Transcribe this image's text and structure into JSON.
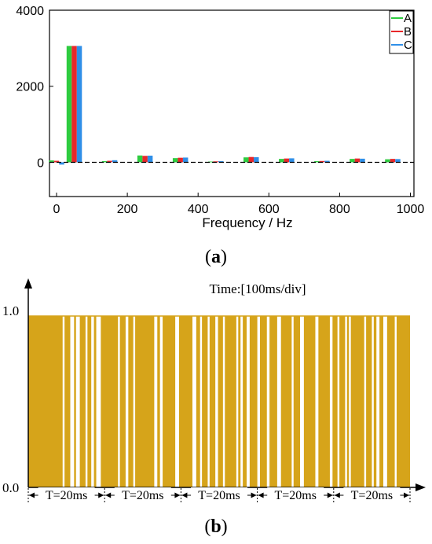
{
  "chart_data": [
    {
      "type": "bar",
      "panel_label": "a",
      "xlabel": "Frequency / Hz",
      "ylabel": "",
      "xlim": [
        -20,
        1010
      ],
      "ylim": [
        -900,
        4000
      ],
      "xticks": [
        0,
        200,
        400,
        600,
        800,
        1000
      ],
      "yticks": [
        0,
        2000,
        4000
      ],
      "grid": false,
      "legend_position": "top-right",
      "colors": {
        "A": "#2ecc40",
        "B": "#e8272a",
        "C": "#2f8fe8"
      },
      "categories": [
        0,
        50,
        150,
        250,
        350,
        450,
        550,
        650,
        750,
        850,
        950
      ],
      "series": [
        {
          "name": "A",
          "values": [
            50,
            3060,
            30,
            180,
            110,
            20,
            130,
            90,
            30,
            90,
            80
          ]
        },
        {
          "name": "B",
          "values": [
            40,
            3060,
            40,
            170,
            120,
            25,
            140,
            100,
            35,
            100,
            90
          ]
        },
        {
          "name": "C",
          "values": [
            -60,
            3060,
            55,
            175,
            125,
            30,
            135,
            105,
            40,
            95,
            85
          ]
        }
      ]
    },
    {
      "type": "line",
      "panel_label": "b",
      "title": "Time:[100ms/div]",
      "ylabels": [
        "1.0",
        "0.0"
      ],
      "period_label": "T=20ms",
      "period_count": 5,
      "line_color": "#d6a41a",
      "pulses": [
        [
          0.0,
          0.09
        ],
        [
          0.095,
          0.11
        ],
        [
          0.12,
          0.125
        ],
        [
          0.135,
          0.15
        ],
        [
          0.155,
          0.165
        ],
        [
          0.172,
          0.178
        ],
        [
          0.19,
          0.235
        ],
        [
          0.24,
          0.255
        ],
        [
          0.262,
          0.275
        ],
        [
          0.28,
          0.33
        ],
        [
          0.338,
          0.345
        ],
        [
          0.352,
          0.385
        ],
        [
          0.395,
          0.43
        ],
        [
          0.44,
          0.45
        ],
        [
          0.455,
          0.47
        ],
        [
          0.475,
          0.49
        ],
        [
          0.497,
          0.51
        ],
        [
          0.515,
          0.545
        ],
        [
          0.55,
          0.556
        ],
        [
          0.562,
          0.572
        ],
        [
          0.58,
          0.6
        ],
        [
          0.607,
          0.625
        ],
        [
          0.632,
          0.652
        ],
        [
          0.662,
          0.69
        ],
        [
          0.695,
          0.712
        ],
        [
          0.722,
          0.752
        ],
        [
          0.76,
          0.79
        ],
        [
          0.797,
          0.81
        ],
        [
          0.815,
          0.83
        ],
        [
          0.835,
          0.84
        ],
        [
          0.845,
          0.88
        ],
        [
          0.885,
          0.9
        ],
        [
          0.905,
          0.912
        ],
        [
          0.92,
          0.93
        ],
        [
          0.94,
          0.96
        ],
        [
          0.965,
          1.0
        ]
      ]
    }
  ]
}
